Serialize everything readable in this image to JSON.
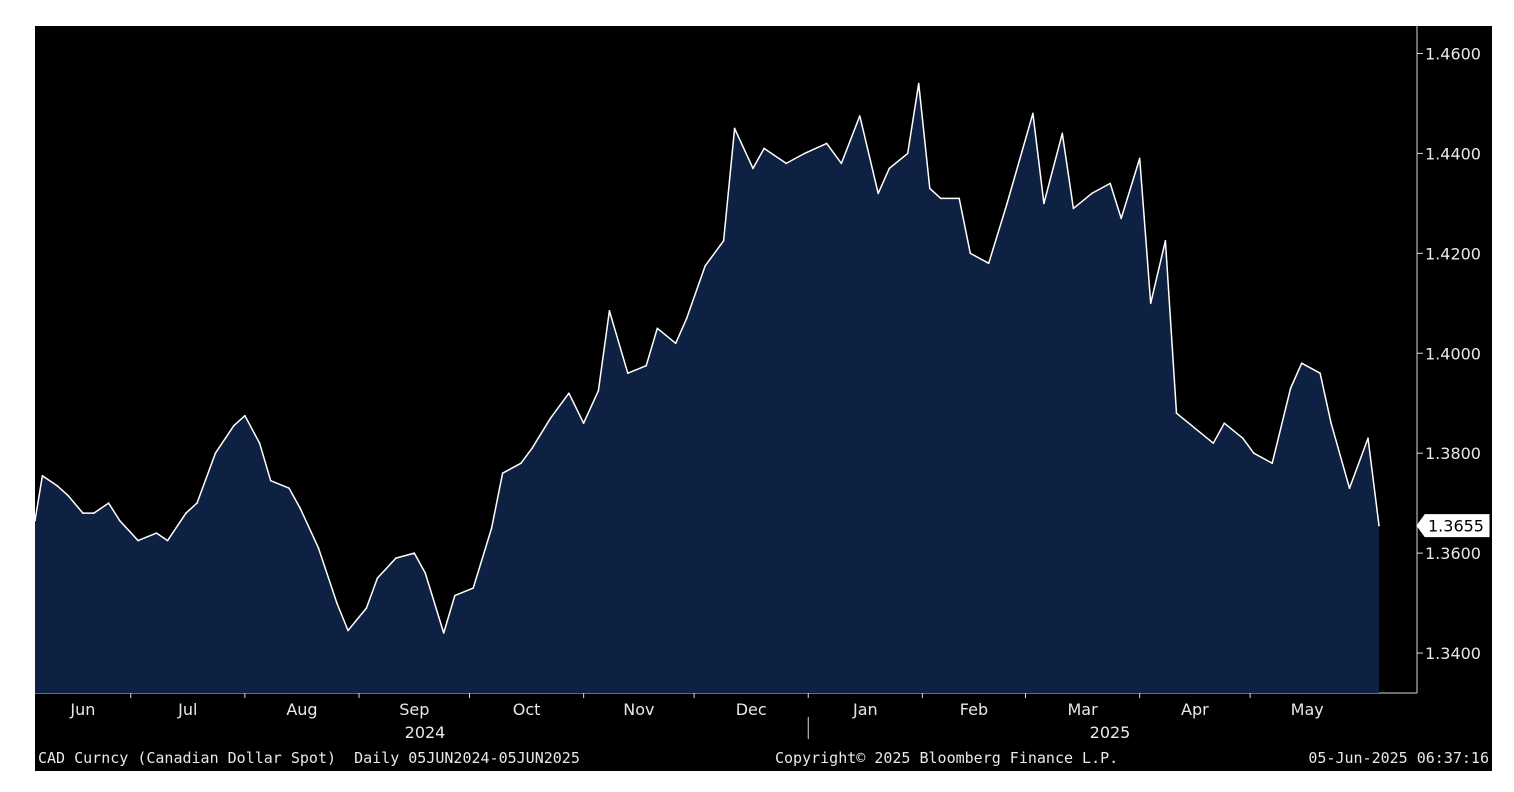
{
  "chart_data": {
    "type": "area",
    "ticker": "CAD Curncy (Canadian Dollar Spot)",
    "frequency": "Daily",
    "date_range": "05JUN2024-05JUN2025",
    "copyright": "Copyright© 2025 Bloomberg Finance L.P.",
    "timestamp": "05-Jun-2025 06:37:16",
    "last_value_label": "1.3655",
    "y_ticks": [
      "1.3400",
      "1.3600",
      "1.3800",
      "1.4000",
      "1.4200",
      "1.4400",
      "1.4600"
    ],
    "ylim": [
      1.332,
      1.4655
    ],
    "month_labels": [
      "Jun",
      "Jul",
      "Aug",
      "Sep",
      "Oct",
      "Nov",
      "Dec",
      "Jan",
      "Feb",
      "Mar",
      "Apr",
      "May"
    ],
    "year_labels": [
      "2024",
      "2025"
    ],
    "series": [
      {
        "x": [
          "2024-06-05",
          "2024-06-07",
          "2024-06-11",
          "2024-06-14",
          "2024-06-18",
          "2024-06-21",
          "2024-06-25",
          "2024-06-28",
          "2024-07-03",
          "2024-07-08",
          "2024-07-11",
          "2024-07-16",
          "2024-07-19",
          "2024-07-24",
          "2024-07-29",
          "2024-08-01",
          "2024-08-05",
          "2024-08-08",
          "2024-08-13",
          "2024-08-16",
          "2024-08-21",
          "2024-08-26",
          "2024-08-29",
          "2024-09-03",
          "2024-09-06",
          "2024-09-11",
          "2024-09-16",
          "2024-09-19",
          "2024-09-24",
          "2024-09-27",
          "2024-10-02",
          "2024-10-07",
          "2024-10-10",
          "2024-10-15",
          "2024-10-18",
          "2024-10-23",
          "2024-10-28",
          "2024-11-01",
          "2024-11-05",
          "2024-11-08",
          "2024-11-13",
          "2024-11-18",
          "2024-11-21",
          "2024-11-26",
          "2024-11-29",
          "2024-12-04",
          "2024-12-09",
          "2024-12-12",
          "2024-12-17",
          "2024-12-20",
          "2024-12-26",
          "2024-12-31",
          "2025-01-06",
          "2025-01-10",
          "2025-01-15",
          "2025-01-20",
          "2025-01-23",
          "2025-01-28",
          "2025-01-31",
          "2025-02-03",
          "2025-02-06",
          "2025-02-11",
          "2025-02-14",
          "2025-02-19",
          "2025-02-24",
          "2025-03-03",
          "2025-03-06",
          "2025-03-11",
          "2025-03-14",
          "2025-03-19",
          "2025-03-24",
          "2025-03-27",
          "2025-04-01",
          "2025-04-04",
          "2025-04-08",
          "2025-04-11",
          "2025-04-16",
          "2025-04-21",
          "2025-04-24",
          "2025-04-29",
          "2025-05-02",
          "2025-05-07",
          "2025-05-12",
          "2025-05-15",
          "2025-05-20",
          "2025-05-23",
          "2025-05-28",
          "2025-06-02",
          "2025-06-05"
        ],
        "values": [
          1.3665,
          1.3755,
          1.3735,
          1.3715,
          1.368,
          1.368,
          1.37,
          1.3665,
          1.3625,
          1.364,
          1.3625,
          1.368,
          1.37,
          1.38,
          1.3855,
          1.3875,
          1.382,
          1.3745,
          1.373,
          1.369,
          1.361,
          1.35,
          1.3445,
          1.349,
          1.355,
          1.359,
          1.36,
          1.356,
          1.344,
          1.3515,
          1.353,
          1.365,
          1.376,
          1.378,
          1.381,
          1.387,
          1.392,
          1.386,
          1.3925,
          1.4085,
          1.396,
          1.3975,
          1.405,
          1.402,
          1.407,
          1.4175,
          1.4225,
          1.445,
          1.437,
          1.441,
          1.438,
          1.44,
          1.442,
          1.438,
          1.4475,
          1.432,
          1.437,
          1.44,
          1.454,
          1.433,
          1.431,
          1.431,
          1.42,
          1.418,
          1.43,
          1.448,
          1.43,
          1.444,
          1.429,
          1.432,
          1.434,
          1.427,
          1.439,
          1.41,
          1.4225,
          1.388,
          1.385,
          1.382,
          1.386,
          1.383,
          1.38,
          1.378,
          1.393,
          1.398,
          1.396,
          1.386,
          1.373,
          1.383,
          1.3655
        ]
      }
    ]
  }
}
